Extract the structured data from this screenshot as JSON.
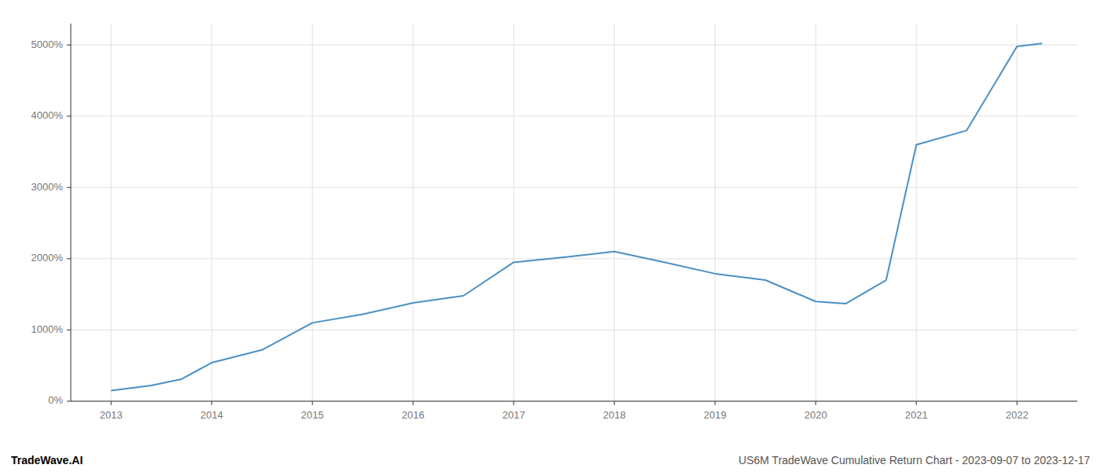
{
  "chart_data": {
    "type": "line",
    "x": [
      2013.0,
      2013.4,
      2013.7,
      2014.0,
      2014.5,
      2015.0,
      2015.5,
      2016.0,
      2016.5,
      2017.0,
      2017.5,
      2018.0,
      2018.5,
      2019.0,
      2019.5,
      2020.0,
      2020.3,
      2020.7,
      2021.0,
      2021.5,
      2022.0,
      2022.25
    ],
    "values": [
      150,
      220,
      310,
      540,
      720,
      1100,
      1220,
      1380,
      1480,
      1950,
      2020,
      2100,
      1950,
      1790,
      1700,
      1400,
      1370,
      1700,
      3600,
      3800,
      4980,
      5020
    ],
    "color": "#4a90c4",
    "xlim": [
      2012.6,
      2022.6
    ],
    "xticks": [
      2013,
      2014,
      2015,
      2016,
      2017,
      2018,
      2019,
      2020,
      2021,
      2022
    ],
    "ylim": [
      0,
      5300
    ],
    "yticks": [
      {
        "value": 0,
        "label": "0%"
      },
      {
        "value": 1000,
        "label": "1000%"
      },
      {
        "value": 2000,
        "label": "2000%"
      },
      {
        "value": 3000,
        "label": "3000%"
      },
      {
        "value": 4000,
        "label": "4000%"
      },
      {
        "value": 5000,
        "label": "5000%"
      }
    ],
    "grid": true,
    "annotations": [
      "TradeWave.AI",
      "US6M TradeWave Cumulative Return Chart - 2023-09-07 to 2023-12-17"
    ]
  }
}
